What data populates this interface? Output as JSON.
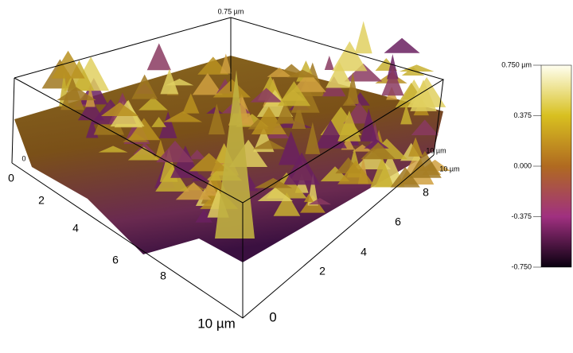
{
  "surface": {
    "z_top_label": "0.75 µm",
    "z_zero_label": "0",
    "left_axis": {
      "ticks": [
        "0",
        "2",
        "4",
        "6",
        "8",
        "10 µm"
      ]
    },
    "right_axis": {
      "ticks": [
        "0",
        "2",
        "4",
        "6",
        "8",
        "10 µm"
      ],
      "end_label": "10 µm"
    }
  },
  "colorbar": {
    "labels": [
      "0.750 µm",
      "0.375",
      "0.000",
      "-0.375",
      "-0.750"
    ]
  }
}
